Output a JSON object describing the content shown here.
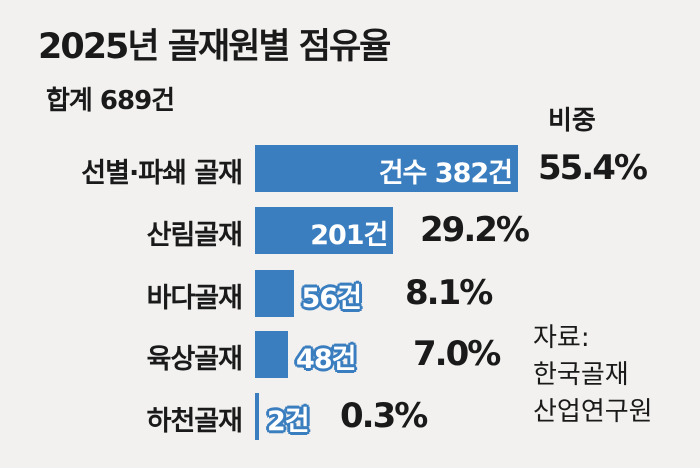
{
  "chart_data": {
    "type": "bar",
    "orientation": "horizontal",
    "title": "2025년 골재원별 점유율",
    "subtitle": "합계 689건",
    "share_header": "비중",
    "categories": [
      "선별·파쇄 골재",
      "산림골재",
      "바다골재",
      "육상골재",
      "하천골재"
    ],
    "values": [
      382,
      201,
      56,
      48,
      2
    ],
    "count_labels": [
      "건수 382건",
      "201건",
      "56건",
      "48건",
      "2건"
    ],
    "shares": [
      "55.4%",
      "29.2%",
      "8.1%",
      "7.0%",
      "0.3%"
    ],
    "bar_color": "#3a7ebf",
    "source": [
      "자료:",
      "한국골재",
      "산업연구원"
    ]
  }
}
